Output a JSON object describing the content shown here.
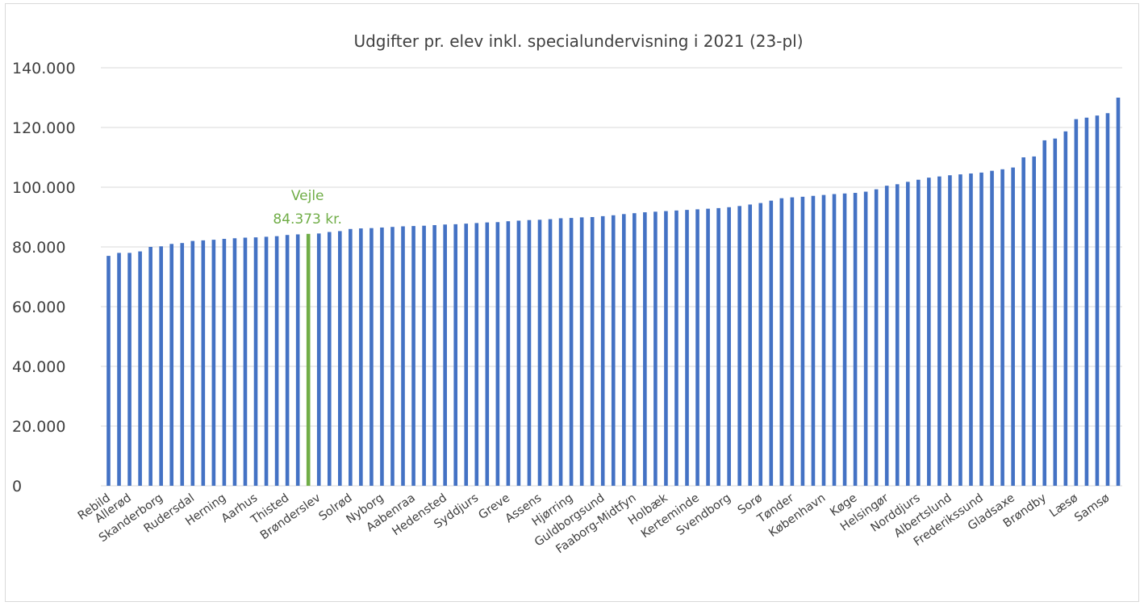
{
  "chart_data": {
    "type": "bar",
    "title": "Udgifter pr. elev inkl. specialundervisning i 2021 (23-pl)",
    "xlabel": "",
    "ylabel": "",
    "ylim": [
      0,
      140000
    ],
    "yticks": [
      0,
      20000,
      40000,
      60000,
      80000,
      100000,
      120000,
      140000
    ],
    "ytick_labels": [
      "0",
      "20.000",
      "40.000",
      "60.000",
      "80.000",
      "100.000",
      "120.000",
      "140.000"
    ],
    "grid": true,
    "legend": "none",
    "colors": {
      "bar": "#4472c4",
      "highlight": "#70ad47",
      "grid": "#d9d9d9",
      "text": "#404040"
    },
    "categories": [
      "Rebild",
      "",
      "Allerød",
      "",
      "",
      "Skanderborg",
      "",
      "",
      "Rudersdal",
      "",
      "",
      "Herning",
      "",
      "",
      "Aarhus",
      "",
      "",
      "Thisted",
      "",
      "",
      "Brønderslev",
      "",
      "",
      "Solrød",
      "",
      "",
      "Nyborg",
      "",
      "",
      "Aabenraa",
      "",
      "",
      "Hedensted",
      "",
      "",
      "Syddjurs",
      "",
      "",
      "Greve",
      "",
      "",
      "Assens",
      "",
      "",
      "Hjørring",
      "",
      "",
      "Guldborgsund",
      "",
      "",
      "Faaborg-Midtfyn",
      "",
      "",
      "Holbæk",
      "",
      "",
      "Kerteminde",
      "",
      "",
      "Svendborg",
      "",
      "",
      "Sorø",
      "",
      "",
      "Tønder",
      "",
      "",
      "København",
      "",
      "",
      "Køge",
      "",
      "",
      "Helsingør",
      "",
      "",
      "Norddjurs",
      "",
      "",
      "Albertslund",
      "",
      "",
      "Frederikssund",
      "",
      "",
      "Gladsaxe",
      "",
      "",
      "Brøndby",
      "",
      "",
      "Læsø",
      "",
      "",
      "Samsø",
      ""
    ],
    "values": [
      77000,
      78000,
      78000,
      78500,
      80000,
      80200,
      81000,
      81300,
      82000,
      82200,
      82400,
      82700,
      82900,
      83100,
      83200,
      83400,
      83600,
      84000,
      84200,
      84373,
      84500,
      85000,
      85300,
      86000,
      86200,
      86300,
      86500,
      86700,
      86900,
      87000,
      87100,
      87300,
      87500,
      87600,
      87800,
      88000,
      88200,
      88300,
      88600,
      88800,
      89000,
      89100,
      89300,
      89600,
      89700,
      89900,
      90000,
      90300,
      90600,
      91000,
      91300,
      91600,
      91800,
      92000,
      92200,
      92400,
      92600,
      92800,
      93000,
      93300,
      93700,
      94200,
      94700,
      95500,
      96300,
      96600,
      96800,
      97100,
      97400,
      97700,
      97900,
      98100,
      98500,
      99300,
      100500,
      101000,
      101800,
      102500,
      103200,
      103600,
      104000,
      104300,
      104600,
      104900,
      105500,
      106000,
      106600,
      110000,
      110300,
      115700,
      116300,
      118700,
      122800,
      123300,
      124000,
      124800,
      130000
    ],
    "highlight_index": 19,
    "annotations": [
      {
        "category_index": 19,
        "label": "Vejle",
        "value_label": "84.373 kr."
      }
    ]
  }
}
